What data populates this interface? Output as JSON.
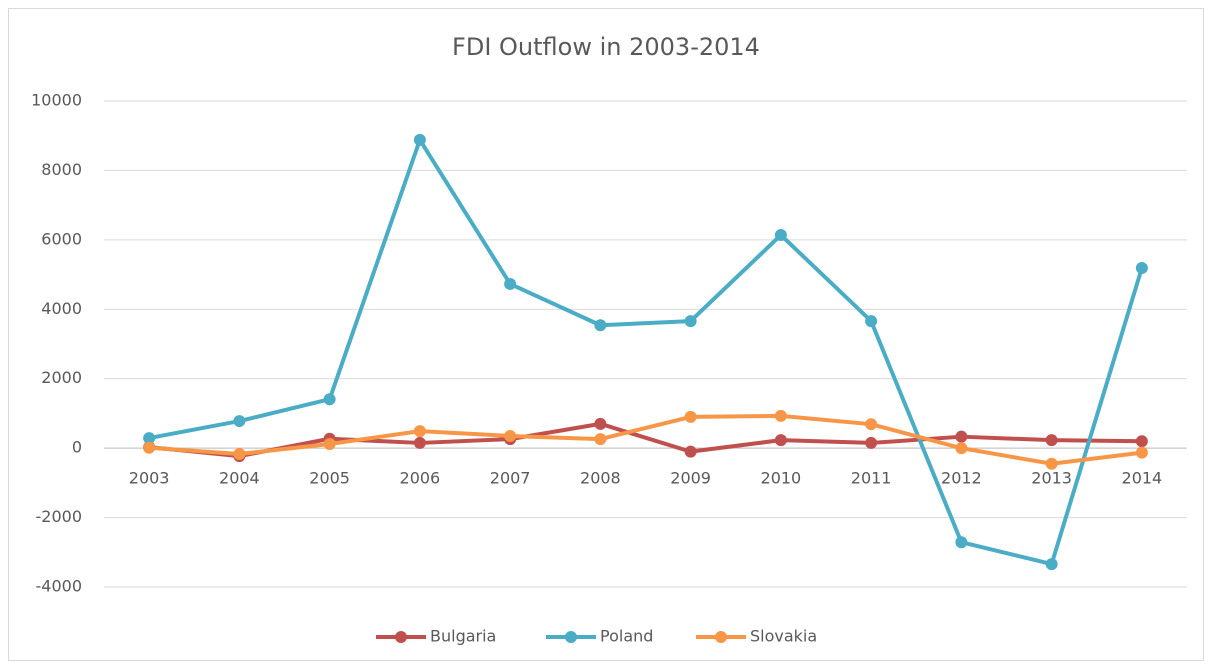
{
  "chart_data": {
    "type": "line",
    "title": "FDI Outflow in 2003-2014",
    "categories": [
      "2003",
      "2004",
      "2005",
      "2006",
      "2007",
      "2008",
      "2009",
      "2010",
      "2011",
      "2012",
      "2013",
      "2014"
    ],
    "series": [
      {
        "name": "Bulgaria",
        "color": "#c0504d",
        "values": [
          30,
          -230,
          270,
          150,
          260,
          700,
          -100,
          230,
          150,
          330,
          230,
          200
        ]
      },
      {
        "name": "Poland",
        "color": "#4bacc6",
        "values": [
          290,
          780,
          1410,
          8880,
          4730,
          3540,
          3660,
          6140,
          3660,
          -2710,
          -3340,
          5190
        ]
      },
      {
        "name": "Slovakia",
        "color": "#f79646",
        "values": [
          10,
          -170,
          120,
          490,
          350,
          260,
          900,
          930,
          690,
          0,
          -450,
          -130
        ]
      }
    ],
    "ylim": [
      -4000,
      10000
    ],
    "yticks": [
      -4000,
      -2000,
      0,
      2000,
      4000,
      6000,
      8000,
      10000
    ],
    "grid": true,
    "legend": "bottom"
  }
}
